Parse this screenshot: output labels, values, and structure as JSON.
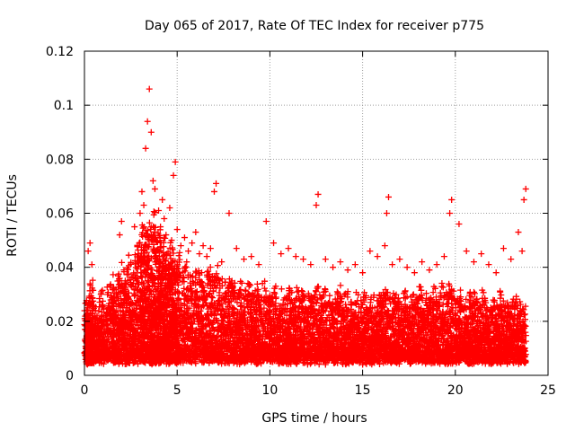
{
  "chart_data": {
    "type": "scatter",
    "title": "Day 065 of 2017, Rate Of TEC Index for receiver p775",
    "xlabel": "GPS time / hours",
    "ylabel": "ROTI / TECUs",
    "xlim": [
      0,
      25
    ],
    "ylim": [
      0,
      0.12
    ],
    "x_ticks": [
      0,
      5,
      10,
      15,
      20,
      25
    ],
    "x_tick_labels": [
      "0",
      "5",
      "10",
      "15",
      "20",
      "25"
    ],
    "y_ticks": [
      0,
      0.02,
      0.04,
      0.06,
      0.08,
      0.1,
      0.12
    ],
    "y_tick_labels": [
      "0",
      "0.02",
      "0.04",
      "0.06",
      "0.08",
      "0.1",
      "0.12"
    ],
    "grid": true,
    "marker": "+",
    "color": "#ff0000",
    "series": [
      {
        "name": "ROTI",
        "x": [
          0.1,
          0.2,
          0.3,
          0.4,
          0.5,
          0.7,
          0.9,
          1.1,
          1.3,
          1.5,
          1.6,
          1.8,
          1.9,
          2.1,
          2.2,
          2.4,
          2.5,
          2.7,
          2.8,
          3.0,
          3.1,
          3.2,
          3.3,
          3.4,
          3.5,
          3.6,
          3.7,
          3.8,
          3.9,
          4.0,
          4.1,
          4.2,
          4.3,
          4.4,
          4.5,
          4.6,
          4.7,
          4.8,
          4.9,
          5.0,
          5.1,
          5.3,
          5.5,
          5.7,
          5.9,
          6.1,
          6.3,
          6.5,
          6.7,
          6.9,
          7.1,
          7.3,
          7.5,
          7.7,
          7.9,
          8.1,
          8.3,
          8.5,
          8.7,
          8.9,
          9.1,
          9.3,
          9.5,
          9.7,
          9.9,
          10.1,
          10.3,
          10.5,
          10.7,
          10.9,
          11.1,
          11.3,
          11.5,
          11.7,
          11.9,
          12.1,
          12.3,
          12.5,
          12.7,
          12.9,
          13.1,
          13.3,
          13.5,
          13.7,
          13.9,
          14.1,
          14.3,
          14.5,
          14.7,
          14.9,
          15.1,
          15.3,
          15.5,
          15.7,
          15.9,
          16.1,
          16.3,
          16.5,
          16.7,
          16.9,
          17.1,
          17.3,
          17.5,
          17.7,
          17.9,
          18.1,
          18.3,
          18.5,
          18.7,
          18.9,
          19.1,
          19.3,
          19.5,
          19.7,
          19.9,
          20.1,
          20.3,
          20.5,
          20.7,
          20.9,
          21.1,
          21.3,
          21.5,
          21.7,
          21.9,
          22.1,
          22.3,
          22.5,
          22.7,
          22.9,
          23.1,
          23.3,
          23.5,
          23.7,
          3.5,
          3.4,
          3.3,
          3.6,
          4.9,
          4.8,
          7.1,
          7.0,
          12.6,
          12.5,
          16.4,
          16.3,
          19.8,
          19.7,
          23.8,
          23.7,
          0.3,
          0.2,
          0.4,
          2.0,
          1.9,
          2.7,
          3.0,
          3.1,
          3.2,
          3.7,
          3.8,
          4.0,
          4.1,
          4.2,
          4.3,
          4.4,
          4.6,
          4.7,
          5.0,
          5.2,
          5.4,
          5.6,
          5.8,
          6.0,
          6.2,
          6.4,
          6.6,
          6.8,
          7.4,
          7.8,
          8.2,
          8.6,
          9.0,
          9.4,
          9.8,
          10.2,
          10.6,
          11.0,
          11.4,
          11.8,
          12.2,
          13.0,
          13.4,
          13.8,
          14.2,
          14.6,
          15.0,
          15.4,
          15.8,
          16.2,
          16.6,
          17.0,
          17.4,
          17.8,
          18.2,
          18.6,
          19.0,
          19.4,
          20.2,
          20.6,
          21.0,
          21.4,
          21.8,
          22.2,
          22.6,
          23.0,
          23.4,
          23.6,
          0.5,
          1.0,
          1.5,
          2.0,
          2.5,
          3.0,
          3.5,
          4.0,
          4.5,
          5.0,
          5.5,
          6.0,
          6.5,
          7.0,
          7.5,
          8.0,
          8.5,
          9.0,
          9.5,
          10.0,
          10.5,
          11.0,
          11.5,
          12.0,
          12.5,
          13.0,
          13.5,
          14.0,
          14.5,
          15.0,
          15.5,
          16.0,
          16.5,
          17.0,
          17.5,
          18.0,
          18.5,
          19.0,
          19.5,
          20.0,
          20.5,
          21.0,
          21.5,
          22.0,
          22.5,
          23.0,
          23.5
        ],
        "y": [
          0.012,
          0.015,
          0.01,
          0.018,
          0.014,
          0.011,
          0.016,
          0.013,
          0.017,
          0.019,
          0.015,
          0.021,
          0.018,
          0.022,
          0.02,
          0.024,
          0.019,
          0.023,
          0.026,
          0.028,
          0.025,
          0.03,
          0.027,
          0.032,
          0.029,
          0.031,
          0.026,
          0.034,
          0.028,
          0.03,
          0.027,
          0.025,
          0.029,
          0.024,
          0.026,
          0.023,
          0.027,
          0.022,
          0.025,
          0.021,
          0.024,
          0.02,
          0.023,
          0.019,
          0.022,
          0.021,
          0.02,
          0.018,
          0.022,
          0.019,
          0.021,
          0.018,
          0.02,
          0.017,
          0.019,
          0.018,
          0.016,
          0.019,
          0.017,
          0.018,
          0.016,
          0.017,
          0.015,
          0.018,
          0.016,
          0.015,
          0.017,
          0.014,
          0.016,
          0.015,
          0.017,
          0.014,
          0.016,
          0.015,
          0.014,
          0.016,
          0.015,
          0.017,
          0.014,
          0.016,
          0.013,
          0.015,
          0.014,
          0.016,
          0.013,
          0.015,
          0.014,
          0.013,
          0.015,
          0.014,
          0.016,
          0.013,
          0.015,
          0.014,
          0.016,
          0.015,
          0.017,
          0.014,
          0.016,
          0.015,
          0.014,
          0.016,
          0.013,
          0.015,
          0.014,
          0.016,
          0.013,
          0.015,
          0.014,
          0.016,
          0.015,
          0.017,
          0.016,
          0.018,
          0.015,
          0.014,
          0.016,
          0.013,
          0.015,
          0.014,
          0.016,
          0.013,
          0.015,
          0.014,
          0.012,
          0.014,
          0.013,
          0.015,
          0.012,
          0.014,
          0.013,
          0.015,
          0.014,
          0.012,
          0.106,
          0.094,
          0.084,
          0.09,
          0.079,
          0.074,
          0.071,
          0.068,
          0.067,
          0.063,
          0.066,
          0.06,
          0.065,
          0.06,
          0.069,
          0.065,
          0.049,
          0.046,
          0.041,
          0.057,
          0.052,
          0.055,
          0.06,
          0.068,
          0.063,
          0.072,
          0.069,
          0.061,
          0.055,
          0.065,
          0.058,
          0.052,
          0.062,
          0.05,
          0.054,
          0.048,
          0.051,
          0.046,
          0.049,
          0.053,
          0.045,
          0.048,
          0.044,
          0.047,
          0.042,
          0.06,
          0.047,
          0.043,
          0.044,
          0.041,
          0.057,
          0.049,
          0.045,
          0.047,
          0.044,
          0.043,
          0.041,
          0.043,
          0.04,
          0.042,
          0.039,
          0.041,
          0.038,
          0.046,
          0.044,
          0.048,
          0.041,
          0.043,
          0.04,
          0.038,
          0.042,
          0.039,
          0.041,
          0.044,
          0.056,
          0.046,
          0.042,
          0.045,
          0.041,
          0.038,
          0.047,
          0.043,
          0.053,
          0.046,
          0.008,
          0.007,
          0.009,
          0.008,
          0.01,
          0.009,
          0.011,
          0.008,
          0.01,
          0.009,
          0.008,
          0.01,
          0.007,
          0.009,
          0.008,
          0.006,
          0.007,
          0.008,
          0.006,
          0.007,
          0.008,
          0.006,
          0.005,
          0.007,
          0.006,
          0.004,
          0.005,
          0.006,
          0.005,
          0.004,
          0.006,
          0.007,
          0.005,
          0.006,
          0.007,
          0.006,
          0.005,
          0.007,
          0.006,
          0.005,
          0.006,
          0.007,
          0.006,
          0.005,
          0.007,
          0.006,
          0.005
        ]
      }
    ]
  }
}
